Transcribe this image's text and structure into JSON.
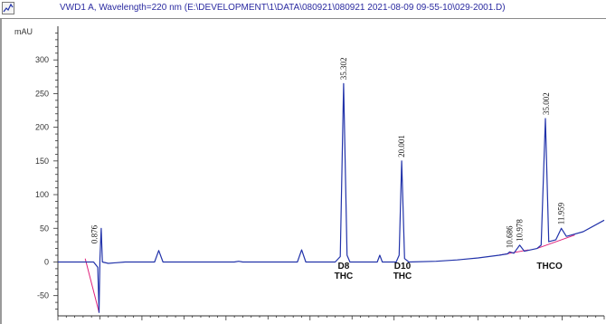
{
  "window": {
    "title": "VWD1 A, Wavelength=220 nm (E:\\DEVELOPMENT\\1\\DATA\\080921\\080921 2021-08-09 09-55-10\\029-2001.D)"
  },
  "colors": {
    "trace": "#2233aa",
    "baseline": "#e0207a",
    "axis": "#333333"
  },
  "chart_data": {
    "type": "line",
    "ylabel": "mAU",
    "xlim": [
      0,
      13
    ],
    "ylim": [
      -80,
      350
    ],
    "xticks": [
      0,
      2,
      4,
      6,
      8,
      10,
      12
    ],
    "yticks": [
      -50,
      0,
      50,
      100,
      150,
      200,
      250,
      300
    ],
    "peaks": [
      {
        "label": "0.876",
        "rt": 0.876,
        "height": 22
      },
      {
        "label": "35.302",
        "rt": 6.8,
        "height": 265
      },
      {
        "label": "20.001",
        "rt": 8.18,
        "height": 150
      },
      {
        "label": "10.686",
        "rt": 10.75,
        "height": 15
      },
      {
        "label": "10.978",
        "rt": 10.99,
        "height": 25
      },
      {
        "label": "35.002",
        "rt": 11.62,
        "height": 213
      },
      {
        "label": "11.959",
        "rt": 11.98,
        "height": 50
      }
    ],
    "annotations": [
      {
        "line1": "D8",
        "line2": "THC",
        "x": 6.8
      },
      {
        "line1": "D10",
        "line2": "THC",
        "x": 8.2
      },
      {
        "line1": "THCO",
        "line2": "",
        "x": 11.7
      }
    ],
    "trace_points": [
      [
        0.0,
        0
      ],
      [
        0.85,
        0
      ],
      [
        0.95,
        -8
      ],
      [
        0.98,
        -75
      ],
      [
        1.0,
        5
      ],
      [
        1.03,
        50
      ],
      [
        1.06,
        0
      ],
      [
        1.2,
        -2
      ],
      [
        1.6,
        0
      ],
      [
        2.3,
        0
      ],
      [
        2.4,
        17
      ],
      [
        2.5,
        0
      ],
      [
        4.2,
        0
      ],
      [
        4.3,
        1
      ],
      [
        4.4,
        0
      ],
      [
        5.7,
        0
      ],
      [
        5.8,
        18
      ],
      [
        5.9,
        0
      ],
      [
        6.6,
        0
      ],
      [
        6.72,
        8
      ],
      [
        6.8,
        265
      ],
      [
        6.88,
        10
      ],
      [
        6.95,
        0
      ],
      [
        7.6,
        0
      ],
      [
        7.66,
        10
      ],
      [
        7.72,
        0
      ],
      [
        8.05,
        0
      ],
      [
        8.12,
        10
      ],
      [
        8.18,
        150
      ],
      [
        8.25,
        5
      ],
      [
        8.35,
        0
      ],
      [
        9.0,
        1
      ],
      [
        9.5,
        3
      ],
      [
        10.0,
        6
      ],
      [
        10.5,
        10
      ],
      [
        10.7,
        12
      ],
      [
        10.75,
        15
      ],
      [
        10.85,
        13
      ],
      [
        10.99,
        25
      ],
      [
        11.1,
        16
      ],
      [
        11.4,
        20
      ],
      [
        11.5,
        25
      ],
      [
        11.6,
        213
      ],
      [
        11.68,
        30
      ],
      [
        11.85,
        33
      ],
      [
        11.98,
        50
      ],
      [
        12.1,
        38
      ],
      [
        12.5,
        45
      ],
      [
        13.0,
        62
      ]
    ],
    "baseline_segments": [
      [
        [
          0.65,
          5
        ],
        [
          0.98,
          -75
        ]
      ],
      [
        [
          10.5,
          10
        ],
        [
          11.2,
          18
        ]
      ],
      [
        [
          11.4,
          20
        ],
        [
          12.3,
          40
        ]
      ]
    ]
  }
}
